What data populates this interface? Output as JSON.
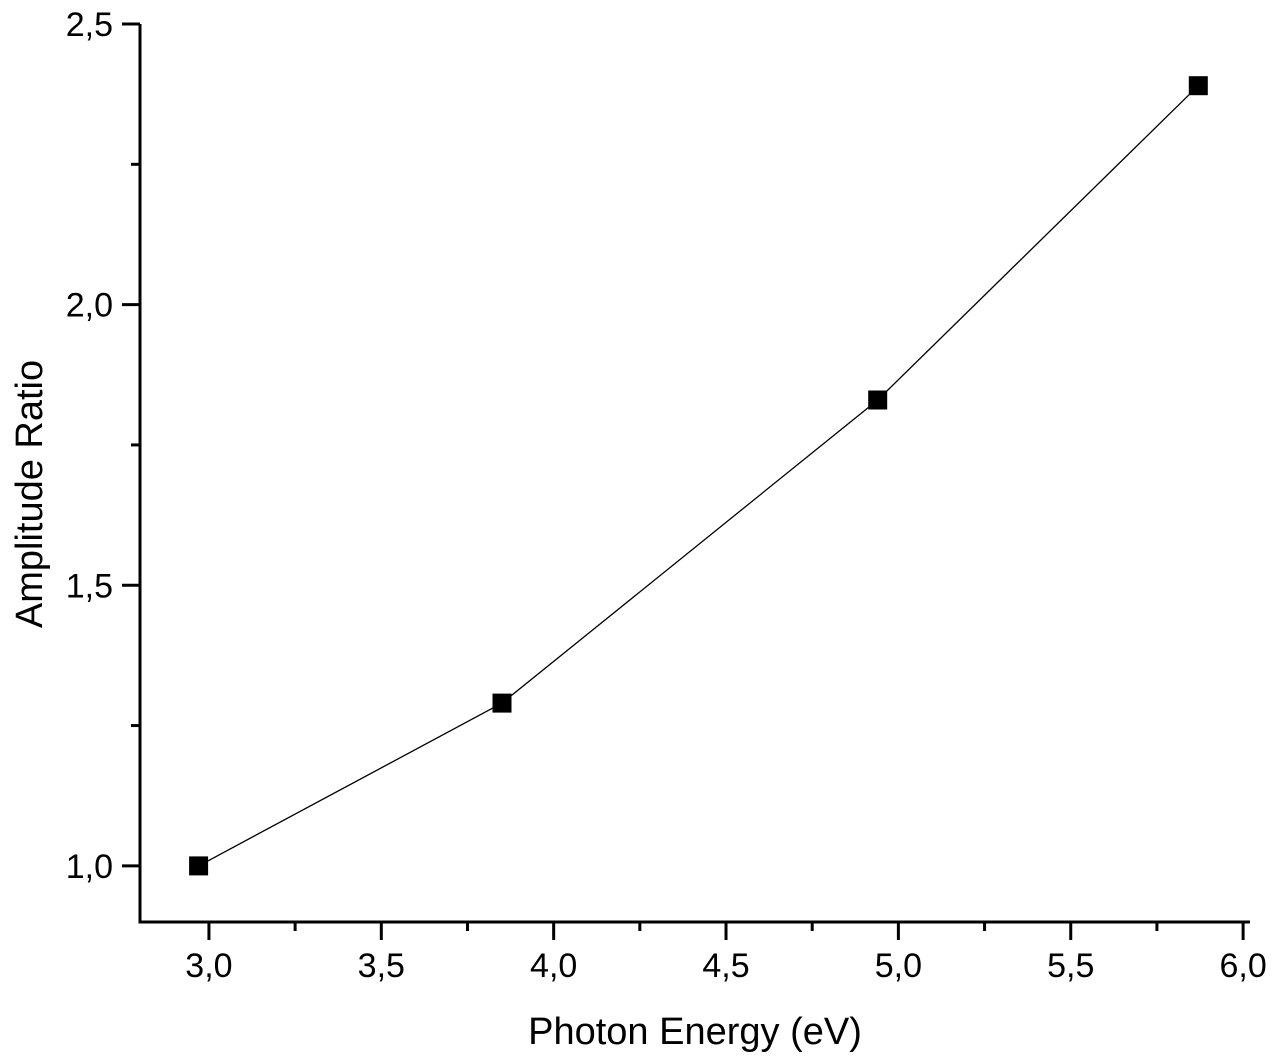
{
  "chart_data": {
    "type": "scatter",
    "subtype": "line-with-square-markers",
    "title": "",
    "xlabel": "Photon Energy (eV)",
    "ylabel": "Amplitude Ratio",
    "xlim": [
      2.8,
      6.02
    ],
    "ylim": [
      0.9,
      2.5
    ],
    "grid": false,
    "legend": "none",
    "decimal_separator": ",",
    "axis_color": "#000000",
    "plot_background": "#ffffff",
    "series": [
      {
        "name": "Amplitude Ratio",
        "marker": "filled-square",
        "marker_color": "#000000",
        "line_color": "#000000",
        "x": [
          2.97,
          3.85,
          4.94,
          5.87
        ],
        "y": [
          1.0,
          1.29,
          1.83,
          2.39
        ]
      }
    ],
    "x_major_ticks": [
      {
        "value": 3.0,
        "label": "3,0"
      },
      {
        "value": 3.5,
        "label": "3,5"
      },
      {
        "value": 4.0,
        "label": "4,0"
      },
      {
        "value": 4.5,
        "label": "4,5"
      },
      {
        "value": 5.0,
        "label": "5,0"
      },
      {
        "value": 5.5,
        "label": "5,5"
      },
      {
        "value": 6.0,
        "label": "6,0"
      }
    ],
    "x_minor_ticks": [
      3.25,
      3.75,
      4.25,
      4.75,
      5.25,
      5.75
    ],
    "y_major_ticks": [
      {
        "value": 1.0,
        "label": "1,0"
      },
      {
        "value": 1.5,
        "label": "1,5"
      },
      {
        "value": 2.0,
        "label": "2,0"
      },
      {
        "value": 2.5,
        "label": "2,5"
      }
    ],
    "y_minor_ticks": [
      1.25,
      1.75,
      2.25
    ]
  }
}
